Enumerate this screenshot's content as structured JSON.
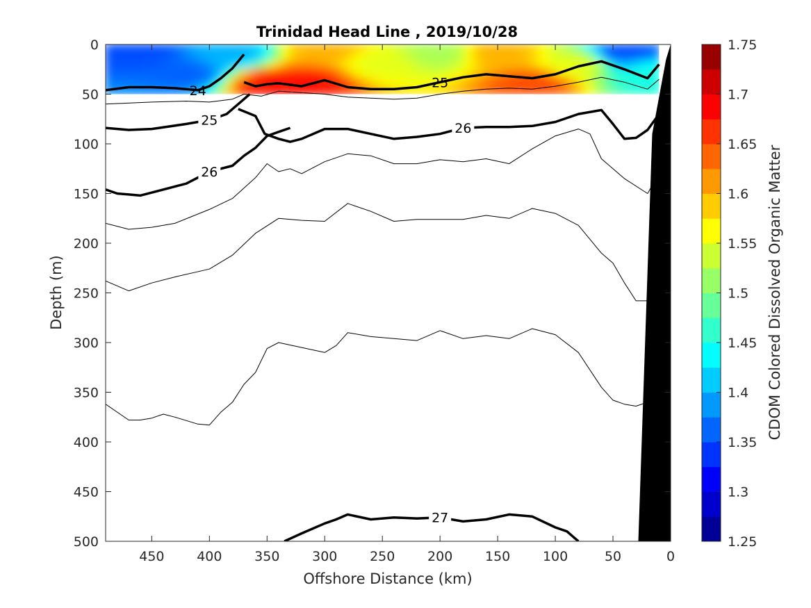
{
  "chart_data": {
    "type": "contour",
    "title": "Trinidad Head Line , 2019/10/28",
    "xlabel": "Offshore Distance (km)",
    "ylabel": "Depth (m)",
    "x_reversed": true,
    "xlim": [
      0,
      490
    ],
    "ylim": [
      0,
      500
    ],
    "y_reversed": true,
    "xticks": [
      450,
      400,
      350,
      300,
      250,
      200,
      150,
      100,
      50,
      0
    ],
    "yticks": [
      0,
      50,
      100,
      150,
      200,
      250,
      300,
      350,
      400,
      450,
      500
    ],
    "colorbar": {
      "label": "CDOM Colored Dissolved Organic Matter",
      "min": 1.25,
      "max": 1.75,
      "ticks": [
        1.25,
        1.3,
        1.35,
        1.4,
        1.45,
        1.5,
        1.55,
        1.6,
        1.65,
        1.7,
        1.75
      ],
      "colormap": "jet",
      "levels": 20
    },
    "cdom_field": {
      "depth_range": [
        0,
        50
      ],
      "description_points": [
        {
          "x": 460,
          "y": 10,
          "v": 1.35
        },
        {
          "x": 420,
          "y": 30,
          "v": 1.36
        },
        {
          "x": 380,
          "y": 10,
          "v": 1.4
        },
        {
          "x": 345,
          "y": 40,
          "v": 1.68
        },
        {
          "x": 315,
          "y": 40,
          "v": 1.68
        },
        {
          "x": 300,
          "y": 5,
          "v": 1.6
        },
        {
          "x": 250,
          "y": 20,
          "v": 1.55
        },
        {
          "x": 200,
          "y": 10,
          "v": 1.52
        },
        {
          "x": 150,
          "y": 10,
          "v": 1.6
        },
        {
          "x": 120,
          "y": 40,
          "v": 1.65
        },
        {
          "x": 80,
          "y": 20,
          "v": 1.55
        },
        {
          "x": 40,
          "y": 10,
          "v": 1.35
        },
        {
          "x": 20,
          "y": 30,
          "v": 1.45
        }
      ]
    },
    "density_contours": [
      {
        "level": 24,
        "bold": true,
        "label": "24",
        "x": [
          490,
          470,
          450,
          430,
          410,
          400,
          390,
          380,
          370
        ],
        "y": [
          46,
          43,
          43,
          44,
          46,
          42,
          34,
          24,
          10
        ]
      },
      {
        "level": 25,
        "bold": true,
        "label": "25",
        "x": [
          370,
          360,
          350,
          340,
          320,
          300,
          280,
          260,
          240,
          220,
          200,
          180,
          160,
          140,
          120,
          100,
          80,
          60,
          40,
          20,
          10
        ],
        "y": [
          38,
          42,
          40,
          39,
          42,
          36,
          43,
          45,
          45,
          43,
          38,
          33,
          30,
          32,
          34,
          30,
          22,
          17,
          25,
          34,
          20
        ]
      },
      {
        "level": 25.5,
        "bold": false,
        "x": [
          490,
          450,
          420,
          400,
          380,
          370,
          355,
          340,
          300,
          280,
          260,
          240,
          220,
          200,
          180,
          160,
          140,
          120,
          100,
          80,
          60,
          40,
          20,
          10
        ],
        "y": [
          60,
          58,
          57,
          58,
          55,
          50,
          52,
          47,
          50,
          53,
          54,
          55,
          54,
          50,
          47,
          45,
          44,
          45,
          42,
          38,
          33,
          38,
          45,
          35
        ]
      },
      {
        "level": 25,
        "bold": true,
        "label": "25",
        "x": [
          490,
          470,
          450,
          420,
          400,
          385,
          375,
          365
        ],
        "y": [
          84,
          86,
          85,
          80,
          76,
          70,
          60,
          50
        ]
      },
      {
        "level": 26,
        "bold": true,
        "label": "26",
        "x": [
          375,
          360,
          352,
          340,
          330,
          320,
          300,
          280,
          260,
          240,
          220,
          200,
          180,
          160,
          140,
          120,
          100,
          80,
          60,
          50,
          40,
          30,
          20,
          10
        ],
        "y": [
          65,
          72,
          90,
          95,
          98,
          95,
          85,
          85,
          90,
          95,
          93,
          90,
          84,
          83,
          83,
          82,
          78,
          70,
          66,
          80,
          95,
          94,
          86,
          70
        ]
      },
      {
        "level": 26,
        "bold": true,
        "label": "26",
        "x": [
          490,
          480,
          470,
          460,
          440,
          420,
          400,
          380,
          370,
          360,
          350,
          340,
          330
        ],
        "y": [
          146,
          150,
          151,
          152,
          146,
          140,
          128,
          122,
          112,
          104,
          92,
          88,
          84
        ]
      },
      {
        "level": 26.2,
        "bold": false,
        "x": [
          490,
          470,
          450,
          430,
          400,
          380,
          360,
          350,
          340,
          330,
          320,
          300,
          280,
          260,
          240,
          220,
          200,
          180,
          160,
          140,
          120,
          100,
          80,
          70,
          60,
          50,
          40,
          20,
          10
        ],
        "y": [
          180,
          186,
          184,
          180,
          166,
          155,
          134,
          120,
          128,
          125,
          130,
          118,
          110,
          112,
          120,
          120,
          116,
          118,
          115,
          120,
          105,
          92,
          85,
          90,
          115,
          125,
          135,
          150,
          130
        ]
      },
      {
        "level": 26.5,
        "bold": false,
        "x": [
          490,
          470,
          450,
          430,
          400,
          380,
          360,
          340,
          320,
          300,
          280,
          260,
          240,
          220,
          200,
          180,
          160,
          140,
          120,
          100,
          80,
          70,
          60,
          50,
          40,
          30,
          20,
          10
        ],
        "y": [
          238,
          248,
          240,
          234,
          226,
          212,
          190,
          175,
          177,
          178,
          160,
          168,
          178,
          176,
          176,
          176,
          172,
          175,
          165,
          170,
          182,
          196,
          210,
          220,
          240,
          258,
          258,
          246
        ]
      },
      {
        "level": 26.8,
        "bold": false,
        "x": [
          490,
          470,
          460,
          450,
          440,
          430,
          410,
          400,
          390,
          380,
          370,
          360,
          350,
          340,
          320,
          300,
          290,
          280,
          260,
          240,
          220,
          200,
          180,
          160,
          140,
          120,
          100,
          80,
          60,
          50,
          40,
          30,
          20,
          10
        ],
        "y": [
          362,
          378,
          378,
          376,
          372,
          375,
          382,
          383,
          370,
          360,
          342,
          330,
          306,
          300,
          305,
          310,
          303,
          290,
          294,
          296,
          298,
          288,
          296,
          293,
          296,
          286,
          292,
          310,
          345,
          358,
          362,
          364,
          360,
          354
        ]
      },
      {
        "level": 27,
        "bold": true,
        "label": "27",
        "x": [
          335,
          320,
          300,
          290,
          280,
          260,
          240,
          220,
          200,
          180,
          160,
          140,
          120,
          100,
          90,
          80
        ],
        "y": [
          500,
          492,
          482,
          478,
          473,
          478,
          476,
          477,
          476,
          480,
          478,
          473,
          475,
          486,
          490,
          500
        ]
      }
    ],
    "bathymetry_color": "#000000"
  }
}
